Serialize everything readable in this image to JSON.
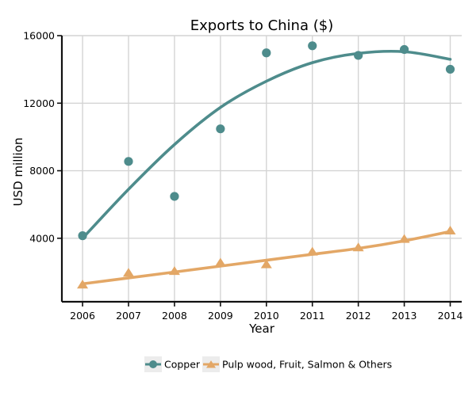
{
  "chart_data": {
    "type": "scatter",
    "title": "Exports to China ($)",
    "xlabel": "Year",
    "ylabel": "USD million",
    "x": [
      2006,
      2007,
      2008,
      2009,
      2010,
      2011,
      2012,
      2013,
      2014
    ],
    "xlim": [
      2005.55,
      2014.25
    ],
    "ylim": [
      240,
      16000
    ],
    "yticks": [
      4000,
      8000,
      12000,
      16000
    ],
    "grid": true,
    "legend_position": "bottom",
    "series": [
      {
        "name": "Copper",
        "color": "#4e8c8c",
        "marker": "circle",
        "values": [
          4150,
          8550,
          6480,
          10480,
          14980,
          15400,
          14830,
          15180,
          14010
        ],
        "trend": [
          4000,
          6900,
          9550,
          11750,
          13300,
          14400,
          14950,
          15050,
          14600
        ]
      },
      {
        "name": "Pulp wood, Fruit, Salmon & Others",
        "color": "#e3a766",
        "marker": "triangle",
        "values": [
          1250,
          1950,
          2050,
          2550,
          2450,
          3200,
          3450,
          3950,
          4450
        ],
        "trend": [
          1300,
          1650,
          2000,
          2350,
          2700,
          3050,
          3400,
          3850,
          4400
        ]
      }
    ]
  }
}
